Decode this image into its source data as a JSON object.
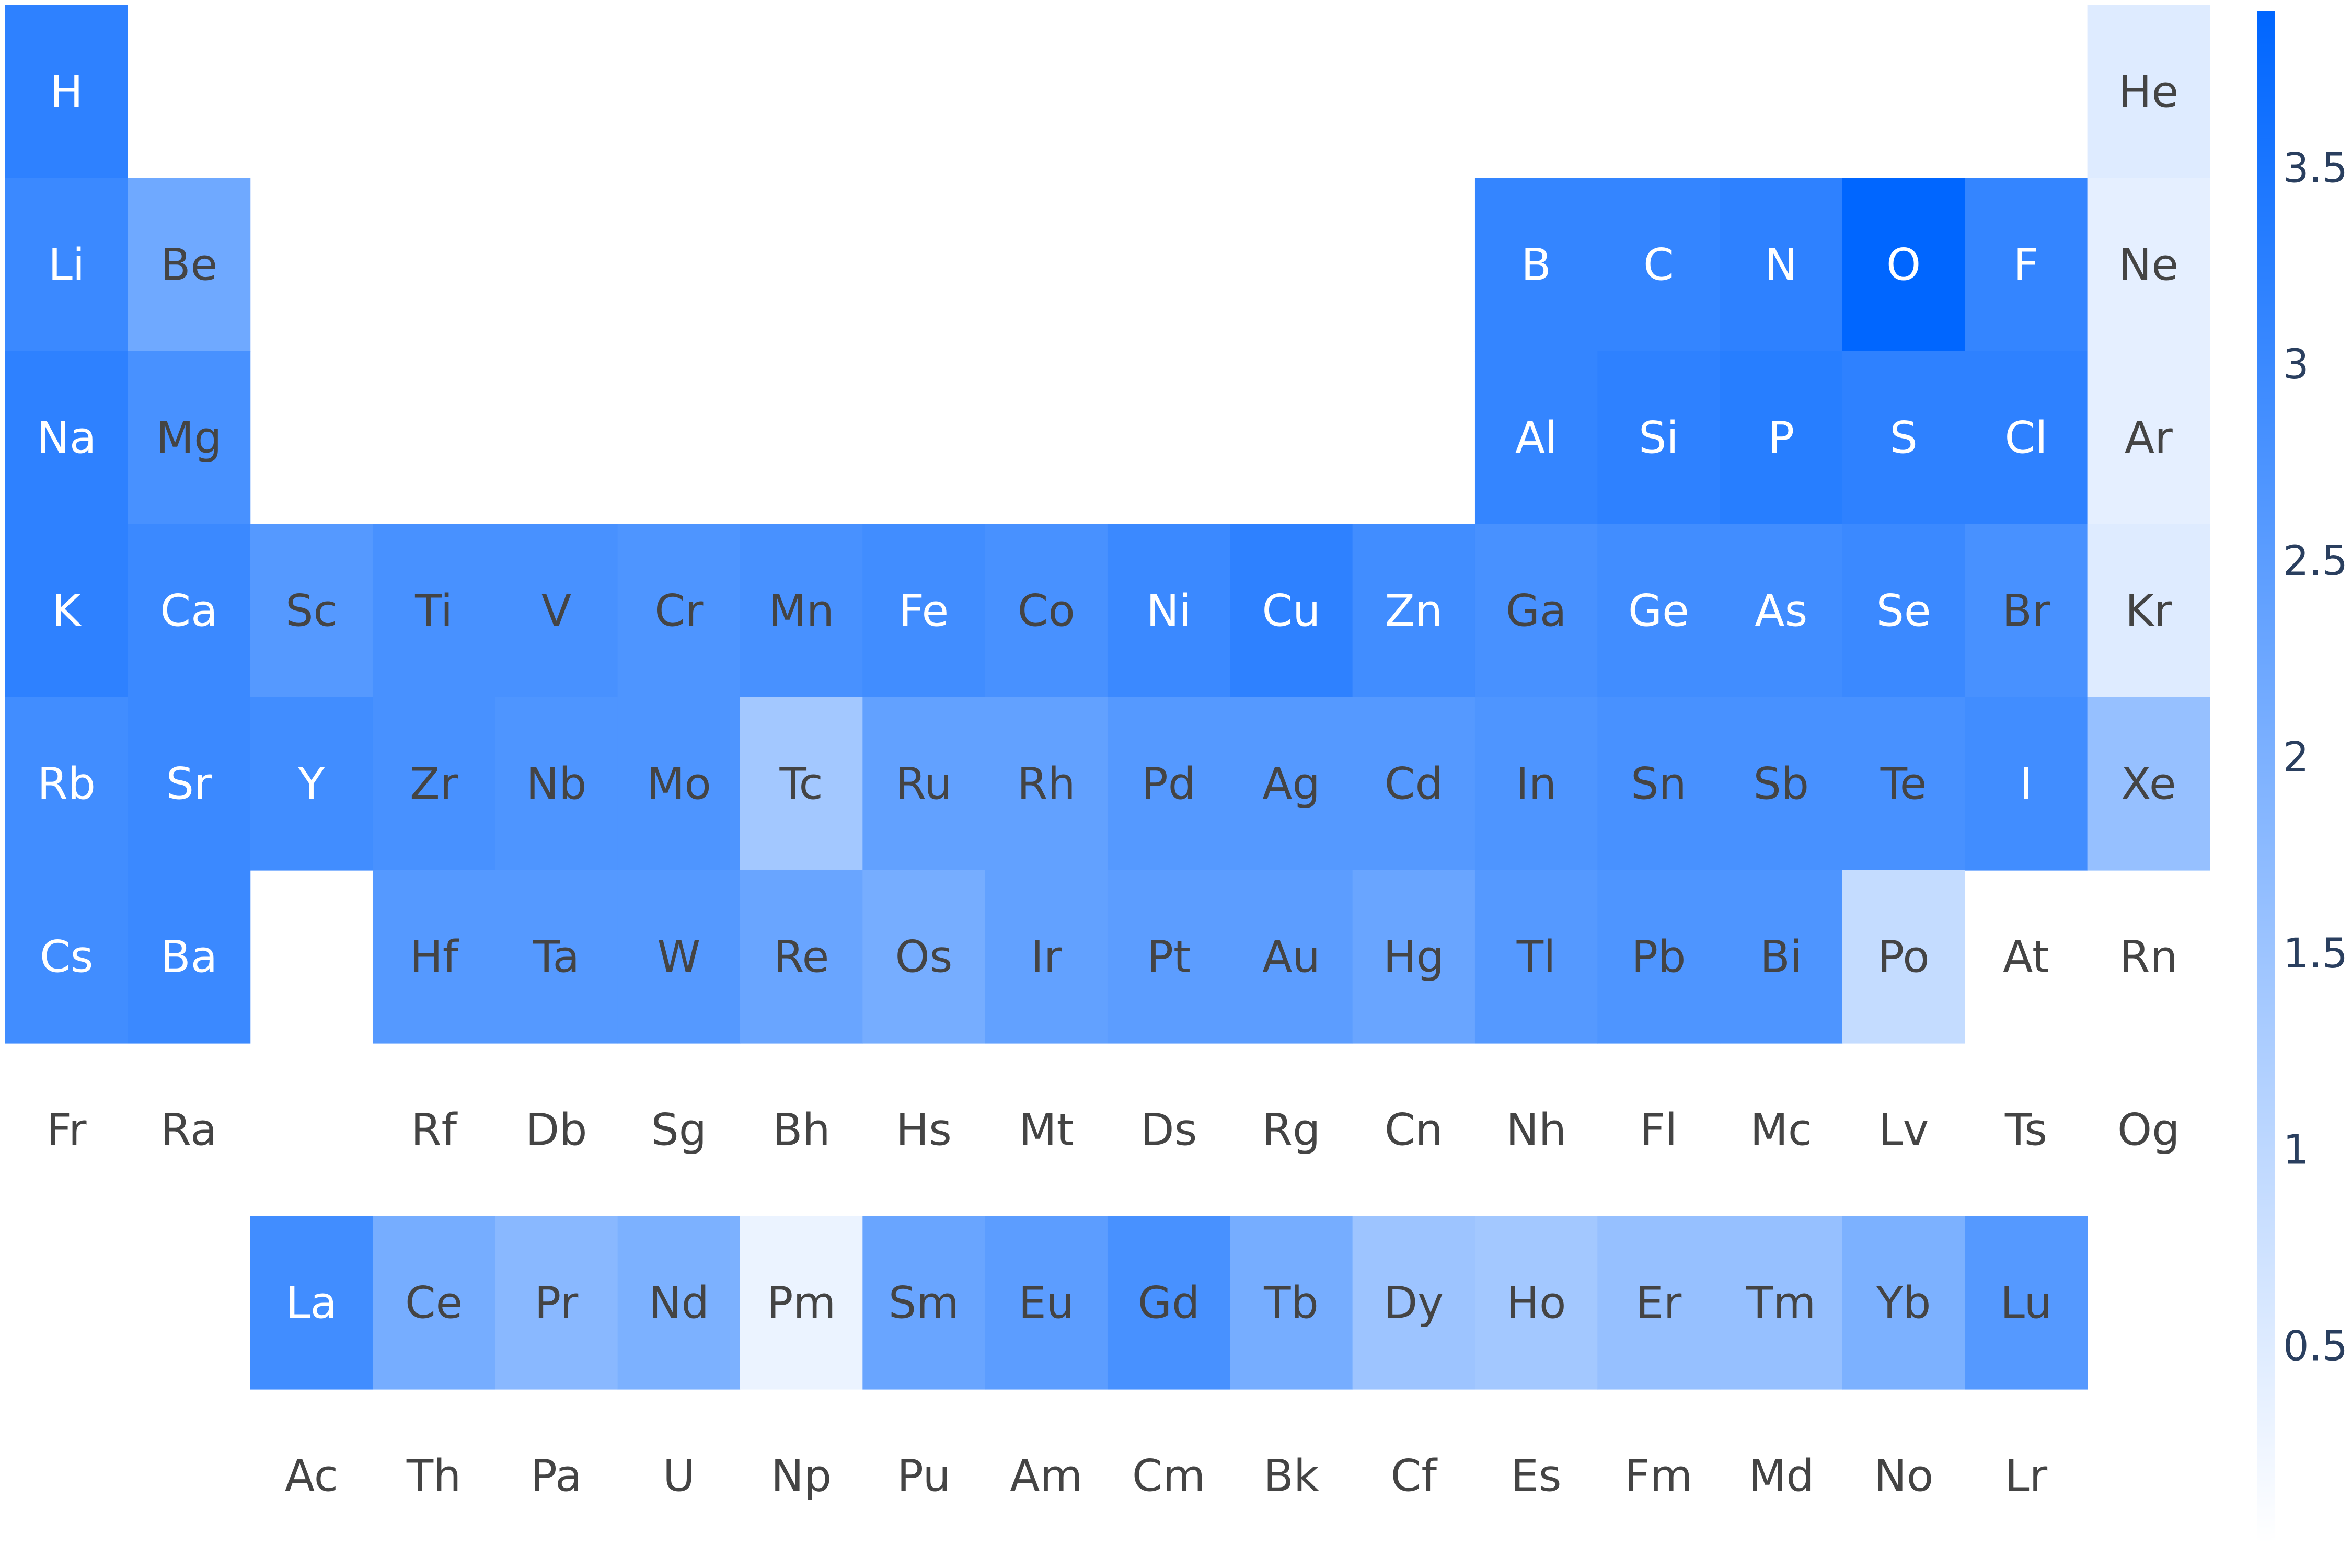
{
  "chart_data": {
    "type": "heatmap",
    "title": "",
    "colorscale": {
      "low": "#ffffff",
      "high": "#0066ff",
      "min": 0,
      "max": 3.9,
      "ticks": [
        0.5,
        1,
        1.5,
        2,
        2.5,
        3,
        3.5
      ],
      "tick_labels": [
        "0.5",
        "1",
        "1.5",
        "2",
        "2.5",
        "3",
        "3.5"
      ]
    },
    "label_color_dark": "#444444",
    "label_color_light": "#ffffff",
    "elements": [
      {
        "symbol": "H",
        "row": 1,
        "col": 1,
        "value": 3.2
      },
      {
        "symbol": "He",
        "row": 1,
        "col": 18,
        "value": 0.5
      },
      {
        "symbol": "Li",
        "row": 2,
        "col": 1,
        "value": 3.0
      },
      {
        "symbol": "Be",
        "row": 2,
        "col": 2,
        "value": 2.2
      },
      {
        "symbol": "B",
        "row": 2,
        "col": 13,
        "value": 3.1
      },
      {
        "symbol": "C",
        "row": 2,
        "col": 14,
        "value": 3.1
      },
      {
        "symbol": "N",
        "row": 2,
        "col": 15,
        "value": 3.2
      },
      {
        "symbol": "O",
        "row": 2,
        "col": 16,
        "value": 3.9
      },
      {
        "symbol": "F",
        "row": 2,
        "col": 17,
        "value": 3.1
      },
      {
        "symbol": "Ne",
        "row": 2,
        "col": 18,
        "value": 0.4
      },
      {
        "symbol": "Na",
        "row": 3,
        "col": 1,
        "value": 3.2
      },
      {
        "symbol": "Mg",
        "row": 3,
        "col": 2,
        "value": 2.8
      },
      {
        "symbol": "Al",
        "row": 3,
        "col": 13,
        "value": 3.1
      },
      {
        "symbol": "Si",
        "row": 3,
        "col": 14,
        "value": 3.2
      },
      {
        "symbol": "P",
        "row": 3,
        "col": 15,
        "value": 3.3
      },
      {
        "symbol": "S",
        "row": 3,
        "col": 16,
        "value": 3.2
      },
      {
        "symbol": "Cl",
        "row": 3,
        "col": 17,
        "value": 3.2
      },
      {
        "symbol": "Ar",
        "row": 3,
        "col": 18,
        "value": 0.4
      },
      {
        "symbol": "K",
        "row": 4,
        "col": 1,
        "value": 3.2
      },
      {
        "symbol": "Ca",
        "row": 4,
        "col": 2,
        "value": 3.0
      },
      {
        "symbol": "Sc",
        "row": 4,
        "col": 3,
        "value": 2.6
      },
      {
        "symbol": "Ti",
        "row": 4,
        "col": 4,
        "value": 2.8
      },
      {
        "symbol": "V",
        "row": 4,
        "col": 5,
        "value": 2.8
      },
      {
        "symbol": "Cr",
        "row": 4,
        "col": 6,
        "value": 2.7
      },
      {
        "symbol": "Mn",
        "row": 4,
        "col": 7,
        "value": 2.8
      },
      {
        "symbol": "Fe",
        "row": 4,
        "col": 8,
        "value": 2.9
      },
      {
        "symbol": "Co",
        "row": 4,
        "col": 9,
        "value": 2.8
      },
      {
        "symbol": "Ni",
        "row": 4,
        "col": 10,
        "value": 3.0
      },
      {
        "symbol": "Cu",
        "row": 4,
        "col": 11,
        "value": 3.2
      },
      {
        "symbol": "Zn",
        "row": 4,
        "col": 12,
        "value": 2.9
      },
      {
        "symbol": "Ga",
        "row": 4,
        "col": 13,
        "value": 2.8
      },
      {
        "symbol": "Ge",
        "row": 4,
        "col": 14,
        "value": 2.9
      },
      {
        "symbol": "As",
        "row": 4,
        "col": 15,
        "value": 2.9
      },
      {
        "symbol": "Se",
        "row": 4,
        "col": 16,
        "value": 3.0
      },
      {
        "symbol": "Br",
        "row": 4,
        "col": 17,
        "value": 2.8
      },
      {
        "symbol": "Kr",
        "row": 4,
        "col": 18,
        "value": 0.5
      },
      {
        "symbol": "Rb",
        "row": 5,
        "col": 1,
        "value": 2.9
      },
      {
        "symbol": "Sr",
        "row": 5,
        "col": 2,
        "value": 3.0
      },
      {
        "symbol": "Y",
        "row": 5,
        "col": 3,
        "value": 2.9
      },
      {
        "symbol": "Zr",
        "row": 5,
        "col": 4,
        "value": 2.8
      },
      {
        "symbol": "Nb",
        "row": 5,
        "col": 5,
        "value": 2.7
      },
      {
        "symbol": "Mo",
        "row": 5,
        "col": 6,
        "value": 2.7
      },
      {
        "symbol": "Tc",
        "row": 5,
        "col": 7,
        "value": 1.4
      },
      {
        "symbol": "Ru",
        "row": 5,
        "col": 8,
        "value": 2.4
      },
      {
        "symbol": "Rh",
        "row": 5,
        "col": 9,
        "value": 2.4
      },
      {
        "symbol": "Pd",
        "row": 5,
        "col": 10,
        "value": 2.6
      },
      {
        "symbol": "Ag",
        "row": 5,
        "col": 11,
        "value": 2.6
      },
      {
        "symbol": "Cd",
        "row": 5,
        "col": 12,
        "value": 2.6
      },
      {
        "symbol": "In",
        "row": 5,
        "col": 13,
        "value": 2.7
      },
      {
        "symbol": "Sn",
        "row": 5,
        "col": 14,
        "value": 2.8
      },
      {
        "symbol": "Sb",
        "row": 5,
        "col": 15,
        "value": 2.8
      },
      {
        "symbol": "Te",
        "row": 5,
        "col": 16,
        "value": 2.8
      },
      {
        "symbol": "I",
        "row": 5,
        "col": 17,
        "value": 2.9
      },
      {
        "symbol": "Xe",
        "row": 5,
        "col": 18,
        "value": 1.6
      },
      {
        "symbol": "Cs",
        "row": 6,
        "col": 1,
        "value": 2.9
      },
      {
        "symbol": "Ba",
        "row": 6,
        "col": 2,
        "value": 3.0
      },
      {
        "symbol": "Hf",
        "row": 6,
        "col": 4,
        "value": 2.6
      },
      {
        "symbol": "Ta",
        "row": 6,
        "col": 5,
        "value": 2.6
      },
      {
        "symbol": "W",
        "row": 6,
        "col": 6,
        "value": 2.6
      },
      {
        "symbol": "Re",
        "row": 6,
        "col": 7,
        "value": 2.3
      },
      {
        "symbol": "Os",
        "row": 6,
        "col": 8,
        "value": 2.1
      },
      {
        "symbol": "Ir",
        "row": 6,
        "col": 9,
        "value": 2.4
      },
      {
        "symbol": "Pt",
        "row": 6,
        "col": 10,
        "value": 2.5
      },
      {
        "symbol": "Au",
        "row": 6,
        "col": 11,
        "value": 2.5
      },
      {
        "symbol": "Hg",
        "row": 6,
        "col": 12,
        "value": 2.3
      },
      {
        "symbol": "Tl",
        "row": 6,
        "col": 13,
        "value": 2.6
      },
      {
        "symbol": "Pb",
        "row": 6,
        "col": 14,
        "value": 2.7
      },
      {
        "symbol": "Bi",
        "row": 6,
        "col": 15,
        "value": 2.7
      },
      {
        "symbol": "Po",
        "row": 6,
        "col": 16,
        "value": 0.9
      },
      {
        "symbol": "At",
        "row": 6,
        "col": 17,
        "value": null
      },
      {
        "symbol": "Rn",
        "row": 6,
        "col": 18,
        "value": null
      },
      {
        "symbol": "Fr",
        "row": 7,
        "col": 1,
        "value": null
      },
      {
        "symbol": "Ra",
        "row": 7,
        "col": 2,
        "value": null
      },
      {
        "symbol": "Rf",
        "row": 7,
        "col": 4,
        "value": null
      },
      {
        "symbol": "Db",
        "row": 7,
        "col": 5,
        "value": null
      },
      {
        "symbol": "Sg",
        "row": 7,
        "col": 6,
        "value": null
      },
      {
        "symbol": "Bh",
        "row": 7,
        "col": 7,
        "value": null
      },
      {
        "symbol": "Hs",
        "row": 7,
        "col": 8,
        "value": null
      },
      {
        "symbol": "Mt",
        "row": 7,
        "col": 9,
        "value": null
      },
      {
        "symbol": "Ds",
        "row": 7,
        "col": 10,
        "value": null
      },
      {
        "symbol": "Rg",
        "row": 7,
        "col": 11,
        "value": null
      },
      {
        "symbol": "Cn",
        "row": 7,
        "col": 12,
        "value": null
      },
      {
        "symbol": "Nh",
        "row": 7,
        "col": 13,
        "value": null
      },
      {
        "symbol": "Fl",
        "row": 7,
        "col": 14,
        "value": null
      },
      {
        "symbol": "Mc",
        "row": 7,
        "col": 15,
        "value": null
      },
      {
        "symbol": "Lv",
        "row": 7,
        "col": 16,
        "value": null
      },
      {
        "symbol": "Ts",
        "row": 7,
        "col": 17,
        "value": null
      },
      {
        "symbol": "Og",
        "row": 7,
        "col": 18,
        "value": null
      },
      {
        "symbol": "La",
        "row": 8,
        "col": 3,
        "value": 2.9
      },
      {
        "symbol": "Ce",
        "row": 8,
        "col": 4,
        "value": 2.1
      },
      {
        "symbol": "Pr",
        "row": 8,
        "col": 5,
        "value": 1.8
      },
      {
        "symbol": "Nd",
        "row": 8,
        "col": 6,
        "value": 2.0
      },
      {
        "symbol": "Pm",
        "row": 8,
        "col": 7,
        "value": 0.3
      },
      {
        "symbol": "Sm",
        "row": 8,
        "col": 8,
        "value": 2.3
      },
      {
        "symbol": "Eu",
        "row": 8,
        "col": 9,
        "value": 2.5
      },
      {
        "symbol": "Gd",
        "row": 8,
        "col": 10,
        "value": 2.8
      },
      {
        "symbol": "Tb",
        "row": 8,
        "col": 11,
        "value": 2.1
      },
      {
        "symbol": "Dy",
        "row": 8,
        "col": 12,
        "value": 1.5
      },
      {
        "symbol": "Ho",
        "row": 8,
        "col": 13,
        "value": 1.4
      },
      {
        "symbol": "Er",
        "row": 8,
        "col": 14,
        "value": 1.6
      },
      {
        "symbol": "Tm",
        "row": 8,
        "col": 15,
        "value": 1.6
      },
      {
        "symbol": "Yb",
        "row": 8,
        "col": 16,
        "value": 2.0
      },
      {
        "symbol": "Lu",
        "row": 8,
        "col": 17,
        "value": 2.6
      },
      {
        "symbol": "Ac",
        "row": 9,
        "col": 3,
        "value": null
      },
      {
        "symbol": "Th",
        "row": 9,
        "col": 4,
        "value": null
      },
      {
        "symbol": "Pa",
        "row": 9,
        "col": 5,
        "value": null
      },
      {
        "symbol": "U",
        "row": 9,
        "col": 6,
        "value": null
      },
      {
        "symbol": "Np",
        "row": 9,
        "col": 7,
        "value": null
      },
      {
        "symbol": "Pu",
        "row": 9,
        "col": 8,
        "value": null
      },
      {
        "symbol": "Am",
        "row": 9,
        "col": 9,
        "value": null
      },
      {
        "symbol": "Cm",
        "row": 9,
        "col": 10,
        "value": null
      },
      {
        "symbol": "Bk",
        "row": 9,
        "col": 11,
        "value": null
      },
      {
        "symbol": "Cf",
        "row": 9,
        "col": 12,
        "value": null
      },
      {
        "symbol": "Es",
        "row": 9,
        "col": 13,
        "value": null
      },
      {
        "symbol": "Fm",
        "row": 9,
        "col": 14,
        "value": null
      },
      {
        "symbol": "Md",
        "row": 9,
        "col": 15,
        "value": null
      },
      {
        "symbol": "No",
        "row": 9,
        "col": 16,
        "value": null
      },
      {
        "symbol": "Lr",
        "row": 9,
        "col": 17,
        "value": null
      }
    ]
  }
}
